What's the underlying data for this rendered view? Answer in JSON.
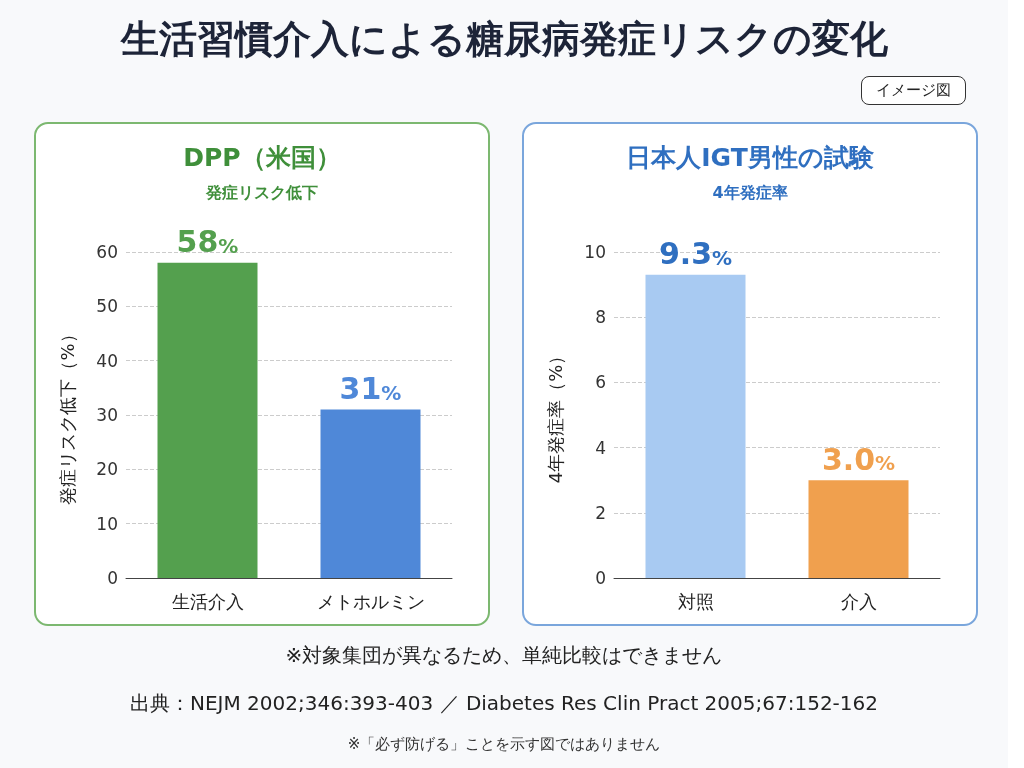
{
  "chart_data": [
    {
      "type": "other",
      "title": "生活習慣介入による糖尿病発症リスクの変化",
      "annotations": [
        "イメージ図",
        "※対象集団が異なるため、単純比較はできません",
        "出典：NEJM  2002;346:393-403 ／ Diabetes Res Clin Pract 2005;67:152-162",
        "※「必ず防げる」ことを示す図ではありません"
      ]
    },
    {
      "type": "bar",
      "title": "DPP（米国）",
      "subtitle": "発症リスク低下",
      "ylabel": "発症リスク低下（%）",
      "categories": [
        "生活介入",
        "メトホルミン"
      ],
      "values": [
        58,
        31
      ],
      "colors": [
        "#54a04e",
        "#4f88d8"
      ],
      "value_labels": [
        "58%",
        "31%"
      ],
      "ylim": [
        0,
        60
      ],
      "yticks": [
        0,
        10,
        20,
        30,
        40,
        50,
        60
      ],
      "grid": "y"
    },
    {
      "type": "bar",
      "title": "日本人IGT男性の試験",
      "subtitle": "4年発症率",
      "ylabel": "4年発症率（%）",
      "categories": [
        "対照",
        "介入"
      ],
      "values": [
        9.3,
        3.0
      ],
      "colors": [
        "#a8caf2",
        "#f0a04e"
      ],
      "value_labels": [
        "9.3%",
        "3.0%"
      ],
      "ylim": [
        0,
        10
      ],
      "yticks": [
        0,
        2,
        4,
        6,
        8,
        10
      ],
      "grid": "y"
    }
  ]
}
